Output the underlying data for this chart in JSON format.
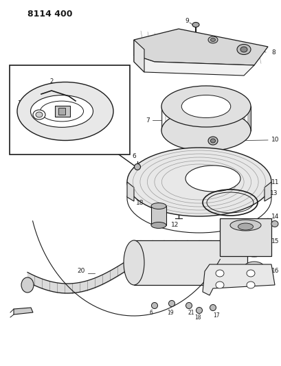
{
  "title": "8114 400",
  "bg_color": "#ffffff",
  "line_color": "#1a1a1a",
  "fig_width": 4.1,
  "fig_height": 5.33,
  "dpi": 100
}
